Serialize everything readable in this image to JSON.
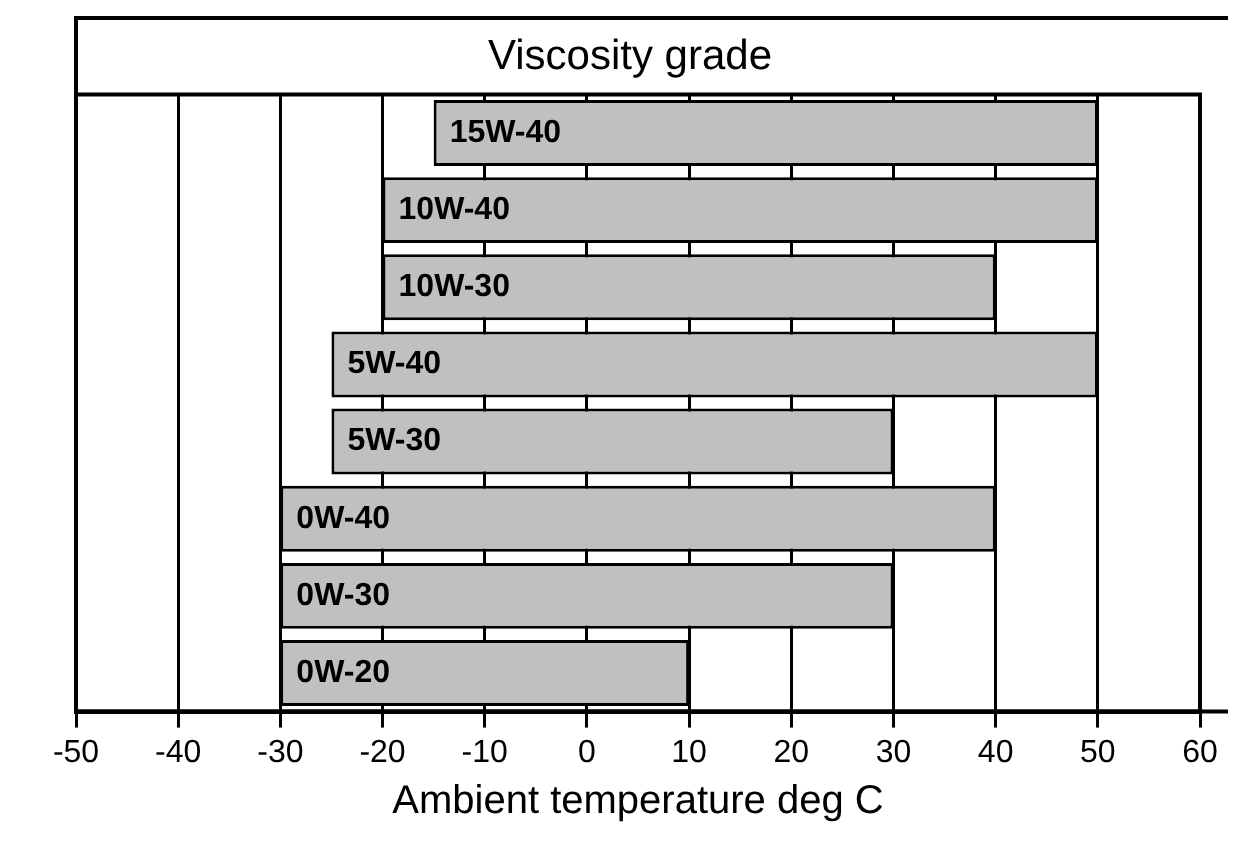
{
  "chart_data": {
    "type": "bar",
    "orientation": "horizontal",
    "title": "Viscosity grade",
    "xlabel": "Ambient temperature deg C",
    "categories": [
      "15W-40",
      "10W-40",
      "10W-30",
      "5W-40",
      "5W-30",
      "0W-40",
      "0W-30",
      "0W-20"
    ],
    "base": [
      -15,
      -20,
      -20,
      -25,
      -25,
      -30,
      -30,
      -30
    ],
    "values": [
      65,
      70,
      60,
      75,
      55,
      70,
      60,
      40
    ],
    "color": "#c0c0c0",
    "xlim": [
      -50,
      60
    ],
    "xticks": [
      -50,
      -40,
      -30,
      -20,
      -10,
      0,
      10,
      20,
      30,
      40,
      50,
      60
    ],
    "grid": "x",
    "tick_labels": "x",
    "legend": false
  }
}
